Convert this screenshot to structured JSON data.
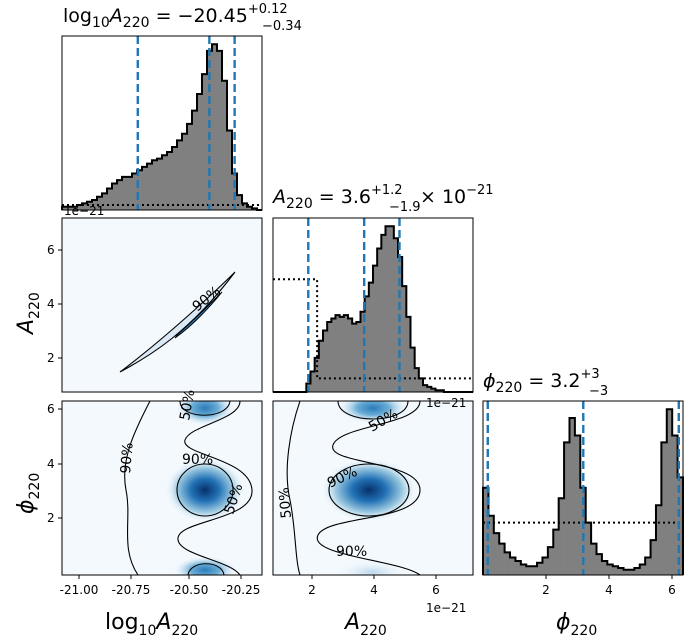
{
  "chart_data": {
    "type": "corner",
    "parameters": [
      {
        "symbol": "log10A",
        "symbol_sub": "220",
        "label_prefix": "log",
        "label_prefix_sub": "10",
        "label_main": "A",
        "label_sub": "220",
        "xlim": [
          -21.15,
          -20.2
        ],
        "xticks": [
          "-21.00",
          "-20.75",
          "-20.50",
          "-20.25"
        ],
        "xtick_values": [
          -21.0,
          -20.75,
          -20.5,
          -20.25
        ]
      },
      {
        "symbol": "A",
        "label_main": "A",
        "label_sub": "220",
        "xlim": [
          0.5,
          7.3
        ],
        "xticks": [
          "2",
          "4",
          "6"
        ],
        "xtick_values": [
          2,
          4,
          6
        ],
        "offset": "1e-21"
      },
      {
        "symbol": "phi",
        "label_main": "ϕ",
        "label_sub": "220",
        "xlim": [
          0,
          6.283
        ],
        "xticks": [
          "2",
          "4",
          "6"
        ],
        "xtick_values": [
          2,
          4,
          6
        ]
      }
    ],
    "titles": [
      {
        "pre": "log",
        "pre_sub": "10",
        "main": "A",
        "sub": "220",
        "eq": " = −20.45",
        "up": "+0.12",
        "lo": "−0.34",
        "post": ""
      },
      {
        "pre": "",
        "pre_sub": "",
        "main": "A",
        "sub": "220",
        "eq": " = 3.6",
        "up": "+1.2",
        "lo": "−1.9",
        "post": "× 10",
        "post_exp": "−21"
      },
      {
        "pre": "",
        "pre_sub": "",
        "main": "ϕ",
        "sub": "220",
        "eq": " = 3.2",
        "up": "+3",
        "lo": "−3",
        "post": ""
      }
    ],
    "offset_labels": {
      "diag0": "1e−21",
      "diag1": "1e−21",
      "bottom_mid": "1e−21"
    },
    "quantile_lines": [
      [
        -20.79,
        -20.45,
        -20.33
      ],
      [
        1.7,
        3.6,
        4.8
      ],
      [
        0.15,
        3.15,
        6.15
      ]
    ],
    "histograms": [
      {
        "bins_start": -21.15,
        "bins_end": -20.2,
        "values": [
          2,
          2,
          2,
          3,
          4,
          5,
          6,
          8,
          10,
          13,
          16,
          18,
          20,
          20,
          22,
          24,
          26,
          28,
          30,
          31,
          33,
          35,
          38,
          42,
          46,
          52,
          60,
          70,
          82,
          96,
          100,
          96,
          78,
          48,
          22,
          9,
          4,
          2,
          1,
          0
        ],
        "prior_level": 3
      },
      {
        "bins_start": 0.5,
        "bins_end": 7.3,
        "values": [
          0,
          0,
          0,
          0,
          0,
          0,
          0,
          0,
          5,
          12,
          20,
          30,
          36,
          41,
          43,
          45,
          44,
          45,
          43,
          40,
          41,
          47,
          56,
          64,
          74,
          84,
          92,
          97,
          97,
          90,
          79,
          62,
          44,
          26,
          14,
          8,
          4,
          3,
          2,
          1,
          1,
          0,
          0,
          0,
          0,
          0,
          0,
          0
        ],
        "prior": [
          [
            0.5,
            66
          ],
          [
            2.0,
            66
          ],
          [
            2.0,
            8
          ],
          [
            7.3,
            8
          ]
        ]
      },
      {
        "bins_start": 0,
        "bins_end": 6.283,
        "values": [
          50,
          34,
          24,
          18,
          13,
          10,
          8,
          6,
          5,
          5,
          7,
          10,
          16,
          26,
          44,
          76,
          90,
          80,
          50,
          30,
          18,
          12,
          8,
          6,
          5,
          4,
          3,
          3,
          4,
          6,
          10,
          20,
          40,
          76,
          95,
          80,
          56
        ],
        "prior_level": 30
      }
    ],
    "contour_labels": [
      "90%",
      "50%",
      "90%",
      "90%",
      "50%",
      "50%",
      "90%",
      "50%",
      "90%"
    ]
  }
}
